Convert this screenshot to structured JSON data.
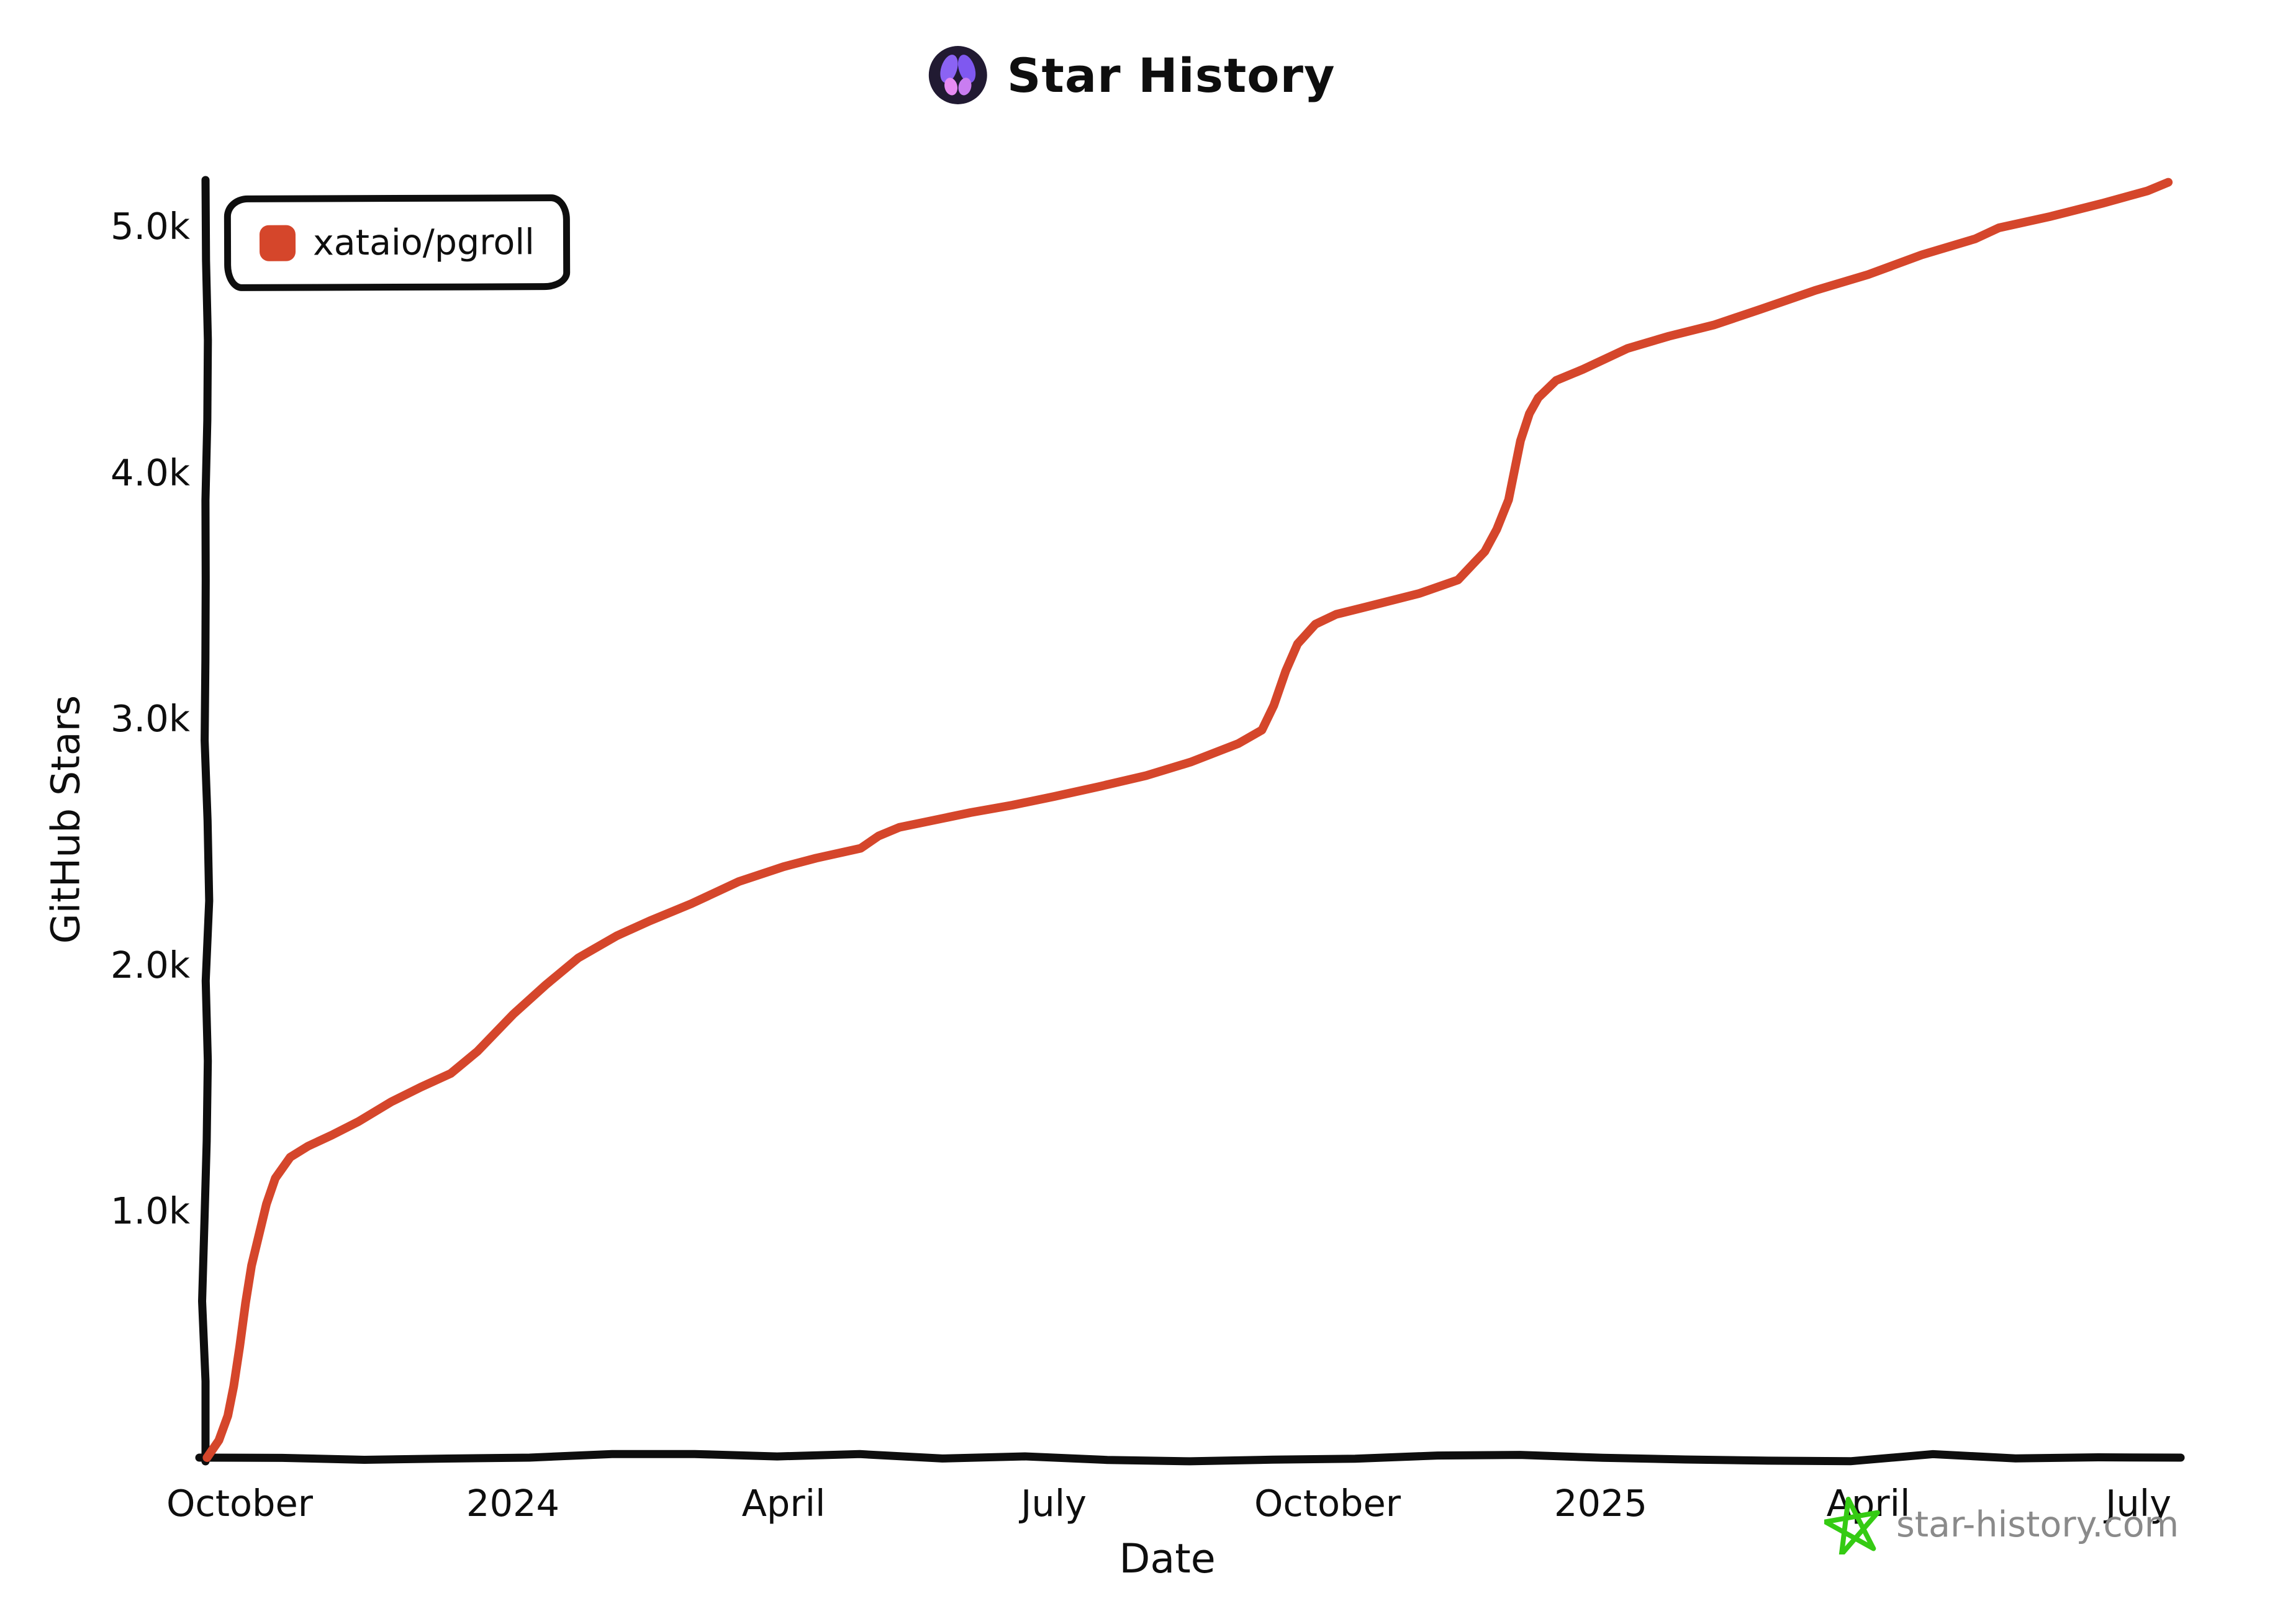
{
  "header": {
    "title": "Star History",
    "logo": {
      "bg": "#211a32",
      "wing_top_left": "#8b63f3",
      "wing_top_right": "#7f58f0",
      "wing_bottom_left": "#e78bf2",
      "wing_bottom_right": "#c97df1"
    }
  },
  "legend": {
    "items": [
      {
        "label": "xataio/pgroll",
        "color": "#d5462b",
        "marker": "rounded-square"
      }
    ]
  },
  "watermark": {
    "text": "star-history.com",
    "icon": "green-star-icon",
    "text_color": "#8a8a8a",
    "icon_color": "#35cb13"
  },
  "chart_data": {
    "type": "line",
    "title": "Star History",
    "xlabel": "Date",
    "ylabel": "GitHub Stars",
    "grid": false,
    "legend_position": "top-left",
    "axis_color": "#0e0e0e",
    "ylim": [
      0,
      5250
    ],
    "x_range": [
      "2023-09-20",
      "2025-07-20"
    ],
    "y_ticks": [
      {
        "label": "1.0k",
        "value": 1000
      },
      {
        "label": "2.0k",
        "value": 2000
      },
      {
        "label": "3.0k",
        "value": 3000
      },
      {
        "label": "4.0k",
        "value": 4000
      },
      {
        "label": "5.0k",
        "value": 5000
      }
    ],
    "x_ticks": [
      {
        "label": "October",
        "date": "2023-10-01"
      },
      {
        "label": "2024",
        "date": "2024-01-01"
      },
      {
        "label": "April",
        "date": "2024-04-01"
      },
      {
        "label": "July",
        "date": "2024-07-01"
      },
      {
        "label": "October",
        "date": "2024-10-01"
      },
      {
        "label": "2025",
        "date": "2025-01-01"
      },
      {
        "label": "April",
        "date": "2025-04-01"
      },
      {
        "label": "July",
        "date": "2025-07-01"
      }
    ],
    "series": [
      {
        "name": "xataio/pgroll",
        "color": "#d5462b",
        "points": [
          [
            "2023-09-20",
            0
          ],
          [
            "2023-09-24",
            70
          ],
          [
            "2023-09-27",
            170
          ],
          [
            "2023-09-29",
            290
          ],
          [
            "2023-10-01",
            450
          ],
          [
            "2023-10-03",
            630
          ],
          [
            "2023-10-05",
            780
          ],
          [
            "2023-10-07",
            880
          ],
          [
            "2023-10-10",
            1030
          ],
          [
            "2023-10-13",
            1135
          ],
          [
            "2023-10-18",
            1220
          ],
          [
            "2023-10-24",
            1265
          ],
          [
            "2023-11-01",
            1310
          ],
          [
            "2023-11-10",
            1365
          ],
          [
            "2023-11-21",
            1445
          ],
          [
            "2023-12-01",
            1505
          ],
          [
            "2023-12-11",
            1560
          ],
          [
            "2023-12-20",
            1650
          ],
          [
            "2024-01-01",
            1800
          ],
          [
            "2024-01-12",
            1920
          ],
          [
            "2024-01-23",
            2030
          ],
          [
            "2024-02-05",
            2120
          ],
          [
            "2024-02-16",
            2180
          ],
          [
            "2024-03-01",
            2250
          ],
          [
            "2024-03-17",
            2340
          ],
          [
            "2024-04-01",
            2400
          ],
          [
            "2024-04-12",
            2435
          ],
          [
            "2024-04-27",
            2475
          ],
          [
            "2024-05-03",
            2525
          ],
          [
            "2024-05-10",
            2560
          ],
          [
            "2024-05-20",
            2585
          ],
          [
            "2024-06-03",
            2620
          ],
          [
            "2024-06-17",
            2650
          ],
          [
            "2024-07-01",
            2685
          ],
          [
            "2024-07-16",
            2725
          ],
          [
            "2024-08-01",
            2770
          ],
          [
            "2024-08-16",
            2825
          ],
          [
            "2024-09-01",
            2900
          ],
          [
            "2024-09-09",
            2955
          ],
          [
            "2024-09-13",
            3055
          ],
          [
            "2024-09-17",
            3195
          ],
          [
            "2024-09-21",
            3305
          ],
          [
            "2024-09-27",
            3385
          ],
          [
            "2024-10-04",
            3425
          ],
          [
            "2024-10-14",
            3455
          ],
          [
            "2024-11-01",
            3510
          ],
          [
            "2024-11-14",
            3565
          ],
          [
            "2024-11-23",
            3680
          ],
          [
            "2024-11-27",
            3770
          ],
          [
            "2024-12-01",
            3890
          ],
          [
            "2024-12-03",
            4010
          ],
          [
            "2024-12-05",
            4130
          ],
          [
            "2024-12-08",
            4240
          ],
          [
            "2024-12-11",
            4305
          ],
          [
            "2024-12-17",
            4375
          ],
          [
            "2024-12-26",
            4420
          ],
          [
            "2025-01-10",
            4505
          ],
          [
            "2025-01-24",
            4555
          ],
          [
            "2025-02-08",
            4600
          ],
          [
            "2025-02-24",
            4665
          ],
          [
            "2025-03-14",
            4740
          ],
          [
            "2025-04-01",
            4805
          ],
          [
            "2025-04-19",
            4885
          ],
          [
            "2025-05-07",
            4950
          ],
          [
            "2025-05-15",
            4995
          ],
          [
            "2025-06-01",
            5040
          ],
          [
            "2025-06-19",
            5095
          ],
          [
            "2025-07-04",
            5145
          ],
          [
            "2025-07-11",
            5180
          ]
        ]
      }
    ]
  }
}
